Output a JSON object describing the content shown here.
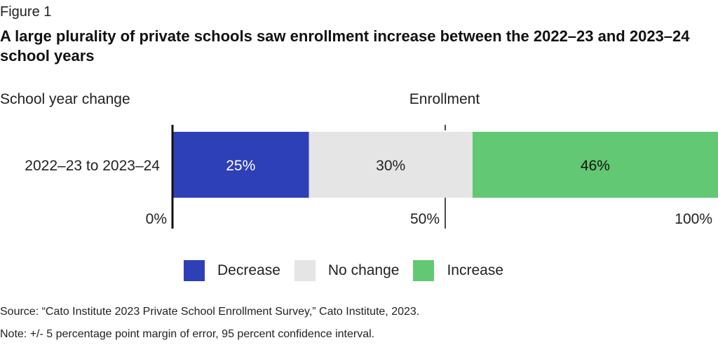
{
  "figure_label": "Figure 1",
  "title": "A large plurality of private schools saw enrollment increase between the 2022–23 and 2023–24 school years",
  "source": "Source: “Cato Institute 2023 Private School Enrollment Survey,” Cato Institute, 2023.",
  "note": "Note: +/- 5 percentage point margin of error, 95 percent confidence interval.",
  "chart_data": {
    "type": "bar",
    "orientation": "horizontal",
    "stacked": true,
    "categories": [
      "2022–23 to 2023–24"
    ],
    "series": [
      {
        "name": "Decrease",
        "values": [
          25
        ],
        "label": "25%",
        "color": "#2e40b8",
        "label_color": "#ffffff"
      },
      {
        "name": "No change",
        "values": [
          30
        ],
        "label": "30%",
        "color": "#e5e5e5",
        "label_color": "#222222"
      },
      {
        "name": "Increase",
        "values": [
          46
        ],
        "label": "46%",
        "color": "#63c873",
        "label_color": "#111111"
      }
    ],
    "xlabel": "Enrollment",
    "ylabel": "School year change",
    "xlim": [
      0,
      100
    ],
    "xticks": [
      {
        "value": 0,
        "label": "0%"
      },
      {
        "value": 50,
        "label": "50%"
      },
      {
        "value": 100,
        "label": "100%"
      }
    ],
    "legend_position": "bottom-center",
    "grid": false
  }
}
